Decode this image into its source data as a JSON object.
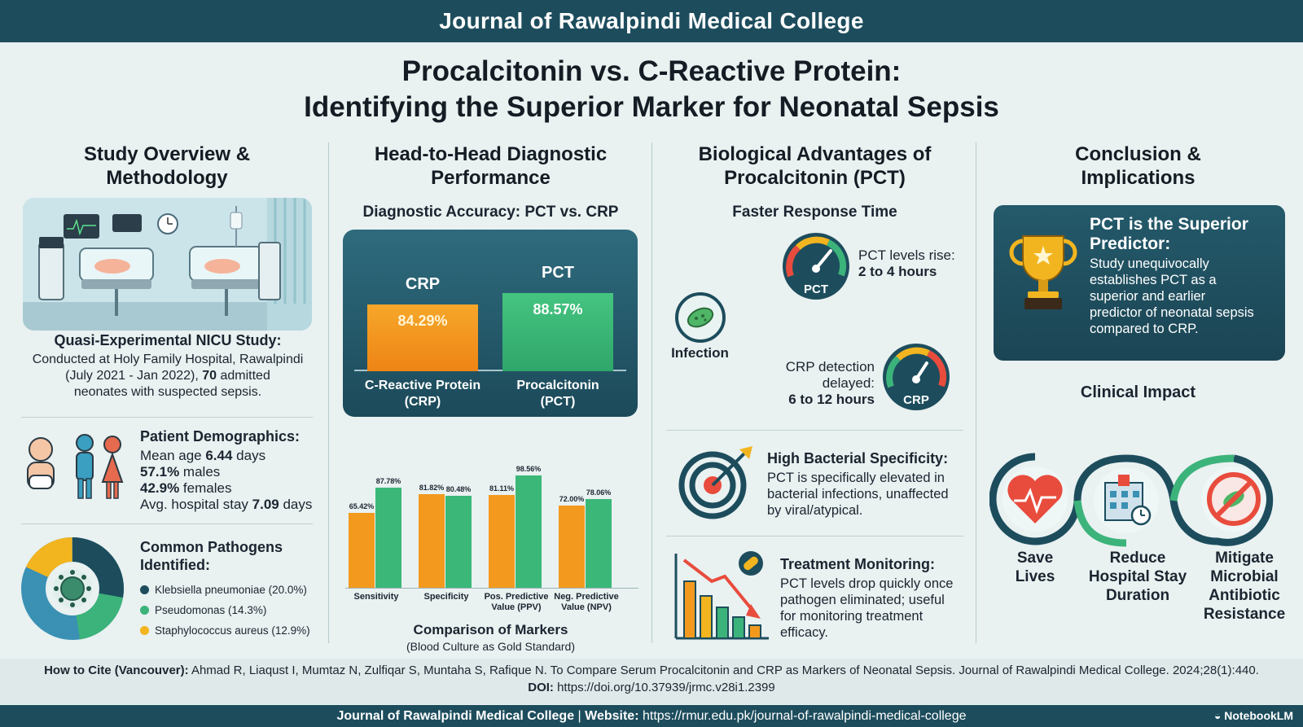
{
  "header": {
    "journal": "Journal of Rawalpindi Medical College"
  },
  "title": {
    "line1": "Procalcitonin vs. C-Reactive Protein:",
    "line2": "Identifying the Superior Marker for Neonatal Sepsis"
  },
  "col1": {
    "heading_l1": "Study Overview &",
    "heading_l2": "Methodology",
    "study_title": "Quasi-Experimental NICU Study:",
    "study_l1": "Conducted at Holy Family Hospital, Rawalpindi",
    "study_l2_pre": "(July 2021 - Jan 2022), ",
    "study_l2_num": "70",
    "study_l2_post": " admitted",
    "study_l3": "neonates with suspected sepsis.",
    "demo_title": "Patient Demographics:",
    "demo_l1_pre": "Mean age ",
    "demo_l1_num": "6.44",
    "demo_l1_post": " days",
    "demo_l2_num": "57.1%",
    "demo_l2_post": " males",
    "demo_l3_num": "42.9%",
    "demo_l3_post": " females",
    "demo_l4_pre": "Avg. hospital stay ",
    "demo_l4_num": "7.09",
    "demo_l4_post": " days",
    "path_title_l1": "Common Pathogens",
    "path_title_l2": "Identified:",
    "pathogens": [
      {
        "label": "Klebsiella pneumoniae (20.0%)",
        "value": 20.0,
        "color": "#1d4d5d"
      },
      {
        "label": "Pseudomonas (14.3%)",
        "value": 14.3,
        "color": "#3cb37a"
      },
      {
        "label": "Staphylococcus aureus (12.9%)",
        "value": 12.9,
        "color": "#f2b51f"
      }
    ]
  },
  "col2": {
    "heading_l1": "Head-to-Head Diagnostic",
    "heading_l2": "Performance",
    "accuracy_title": "Diagnostic Accuracy: PCT vs. CRP",
    "comparison_title": "Comparison of Markers",
    "comparison_sub": "(Blood Culture as Gold Standard)"
  },
  "chart_data": [
    {
      "type": "bar",
      "title": "Diagnostic Accuracy: PCT vs. CRP",
      "categories": [
        "CRP",
        "PCT"
      ],
      "category_labels": [
        [
          "C-Reactive Protein",
          "(CRP)"
        ],
        [
          "Procalcitonin",
          "(PCT)"
        ]
      ],
      "values": [
        84.29,
        88.57
      ],
      "value_labels": [
        "84.29%",
        "88.57%"
      ],
      "colors": [
        "#f39a1e",
        "#3bb878"
      ]
    },
    {
      "type": "bar",
      "title": "Comparison of Markers",
      "categories": [
        [
          "Sensitivity"
        ],
        [
          "Specificity"
        ],
        [
          "Pos. Predictive",
          "Value (PPV)"
        ],
        [
          "Neg. Predictive",
          "Value (NPV)"
        ]
      ],
      "series": [
        {
          "values": [
            65.42,
            81.82,
            81.11,
            72.0
          ],
          "labels": [
            "65.42%",
            "81.82%",
            "81.11%",
            "72.00%"
          ],
          "color": "#f39a1e"
        },
        {
          "values": [
            87.78,
            80.48,
            98.56,
            78.06
          ],
          "labels": [
            "87.78%",
            "80.48%",
            "98.56%",
            "78.06%"
          ],
          "color": "#3bb878"
        }
      ],
      "ylim": [
        0,
        100
      ]
    }
  ],
  "col3": {
    "heading_l1": "Biological Advantages of",
    "heading_l2": "Procalcitonin (PCT)",
    "faster_title": "Faster Response Time",
    "infection_label": "Infection",
    "pct_gauge": "PCT",
    "crp_gauge": "CRP",
    "pct_rise_l1": "PCT levels rise:",
    "pct_rise_l2": "2 to 4 hours",
    "crp_l1": "CRP detection",
    "crp_l2": "delayed:",
    "crp_l3": "6 to 12 hours",
    "spec_title": "High Bacterial Specificity:",
    "spec_l1": "PCT is specifically elevated in",
    "spec_l2": "bacterial infections, unaffected",
    "spec_l3": "by viral/atypical.",
    "mon_title": "Treatment Monitoring:",
    "mon_l1": "PCT levels drop quickly once",
    "mon_l2": "pathogen eliminated; useful",
    "mon_l3": "for monitoring treatment",
    "mon_l4": "efficacy."
  },
  "col4": {
    "heading_l1": "Conclusion &",
    "heading_l2": "Implications",
    "box_title_l1": "PCT is the Superior",
    "box_title_l2": "Predictor:",
    "box_l1": "Study unequivocally",
    "box_l2": "establishes PCT as a",
    "box_l3": "superior and earlier",
    "box_l4": "predictor of neonatal sepsis",
    "box_l5": "compared to CRP.",
    "impact_title": "Clinical Impact",
    "impacts": [
      {
        "l1": "Save",
        "l2": "Lives",
        "l3": "",
        "l4": ""
      },
      {
        "l1": "Reduce",
        "l2": "Hospital Stay",
        "l3": "Duration",
        "l4": ""
      },
      {
        "l1": "Mitigate",
        "l2": "Microbial",
        "l3": "Antibiotic",
        "l4": "Resistance"
      }
    ]
  },
  "footer": {
    "cite_label": "How to Cite (Vancouver):",
    "cite_text": " Ahmad R, Liaqust I, Mumtaz N, Zulfiqar S, Muntaha S, Rafique N. To Compare Serum Procalcitonin and CRP as Markers of Neonatal Sepsis. Journal of Rawalpindi Medical College. 2024;28(1):440.",
    "doi_label": "DOI:",
    "doi_text": " https://doi.org/10.37939/jrmc.v28i1.2399",
    "bar_journal": "Journal of Rawalpindi Medical College",
    "bar_sep": " | ",
    "bar_site_label": "Website:",
    "bar_site": " https://rmur.edu.pk/journal-of-rawalpindi-medical-college",
    "brand": "NotebookLM"
  }
}
